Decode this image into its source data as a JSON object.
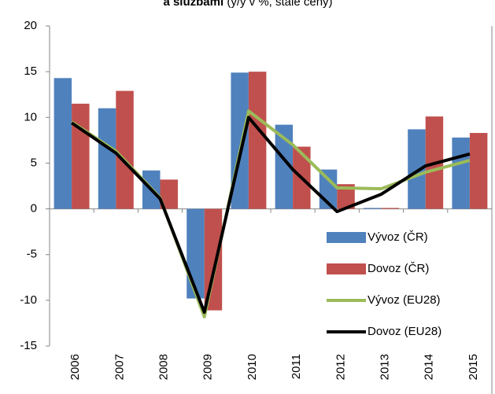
{
  "chart_data": {
    "type": "bar_line",
    "title": "a službami",
    "subtitle": "(y/y v %, stálé ceny)",
    "categories": [
      "2006",
      "2007",
      "2008",
      "2009",
      "2010",
      "2011",
      "2012",
      "2013",
      "2014",
      "2015"
    ],
    "series": [
      {
        "name": "Vývoz (ČR)",
        "type": "bar",
        "color": "#4f81bd",
        "values": [
          14.3,
          11.0,
          4.2,
          -9.8,
          14.9,
          9.2,
          4.3,
          0.1,
          8.7,
          7.8
        ]
      },
      {
        "name": "Dovoz (ČR)",
        "type": "bar",
        "color": "#c0504d",
        "values": [
          11.5,
          12.9,
          3.2,
          -11.1,
          15.0,
          6.8,
          2.7,
          0.1,
          10.1,
          8.3
        ]
      },
      {
        "name": "Vývoz (EU28)",
        "type": "line",
        "color": "#9bbb59",
        "values": [
          9.5,
          6.3,
          1.2,
          -11.8,
          10.7,
          7.0,
          2.3,
          2.2,
          4.0,
          5.3
        ]
      },
      {
        "name": "Dovoz (EU28)",
        "type": "line",
        "color": "#000000",
        "values": [
          9.4,
          6.1,
          1.1,
          -11.3,
          10.0,
          4.3,
          -0.3,
          1.6,
          4.7,
          6.0
        ]
      }
    ],
    "ylim": [
      -15,
      20
    ],
    "yticks": [
      -15,
      -10,
      -5,
      0,
      5,
      10,
      15,
      20
    ]
  }
}
